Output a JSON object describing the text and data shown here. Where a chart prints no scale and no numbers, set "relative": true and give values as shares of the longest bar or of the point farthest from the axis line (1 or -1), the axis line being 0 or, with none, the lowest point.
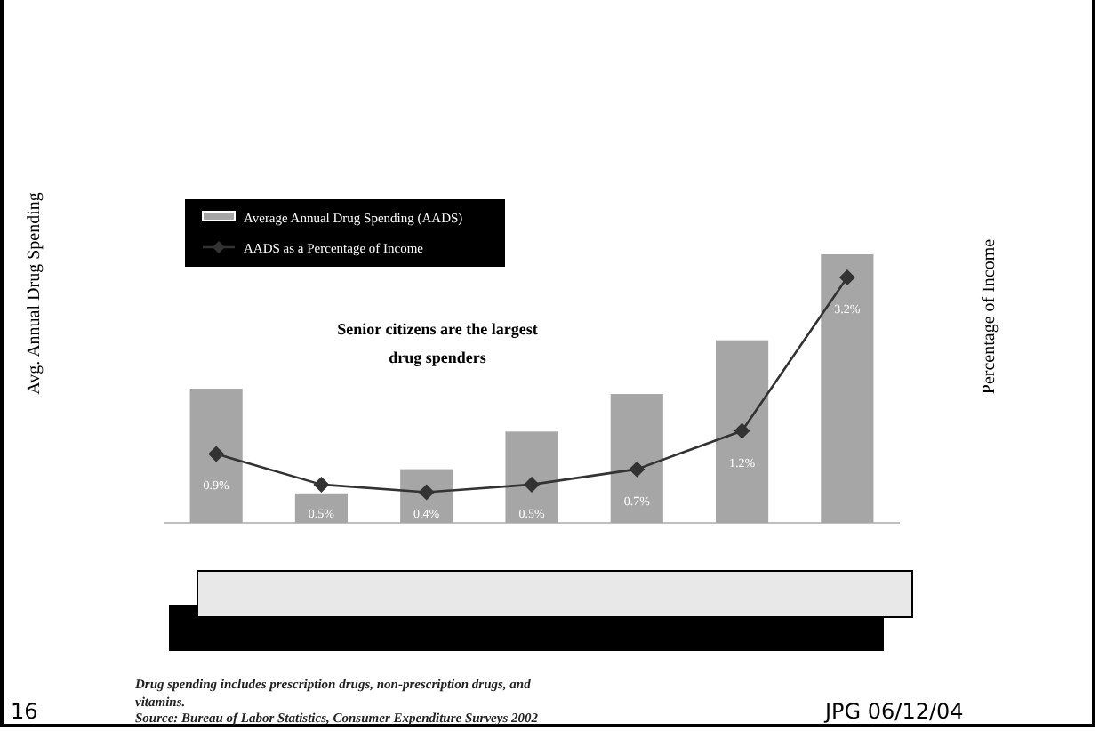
{
  "chart_data": [
    {
      "type": "bar",
      "relative": true,
      "categories": [
        null,
        null,
        null,
        null,
        null,
        null,
        null
      ],
      "series": [
        {
          "name": "Average Annual Drug Spending (AADS)",
          "color": "#a6a6a6",
          "values": [
            0.5,
            0.11,
            0.2,
            0.34,
            0.48,
            0.68,
            1
          ]
        }
      ],
      "ylabel": "Avg. Annual Drug Spending",
      "legend": "top left",
      "annotations": [
        "Senior citizens are the largest drug spenders",
        "Drug spending includes prescription drugs, non-prescription drugs, and vitamins.",
        "Source: Bureau of Labor Statistics, Consumer Expenditure Surveys 2002",
        "16",
        "JPG 06/12/04"
      ]
    },
    {
      "type": "line",
      "categories": [
        null,
        null,
        null,
        null,
        null,
        null,
        null
      ],
      "series": [
        {
          "name": "AADS as a Percentage of Income",
          "color": "#333333",
          "values": [
            0.9,
            0.5,
            0.4,
            0.5,
            0.7,
            1.2,
            3.2
          ],
          "value_labels": [
            "0.9%",
            "0.5%",
            "0.4%",
            "0.5%",
            "0.7%",
            "1.2%",
            "3.2%"
          ]
        }
      ],
      "marker": "diamond",
      "ylabel": "Percentage of Income",
      "legend": "top left"
    }
  ]
}
